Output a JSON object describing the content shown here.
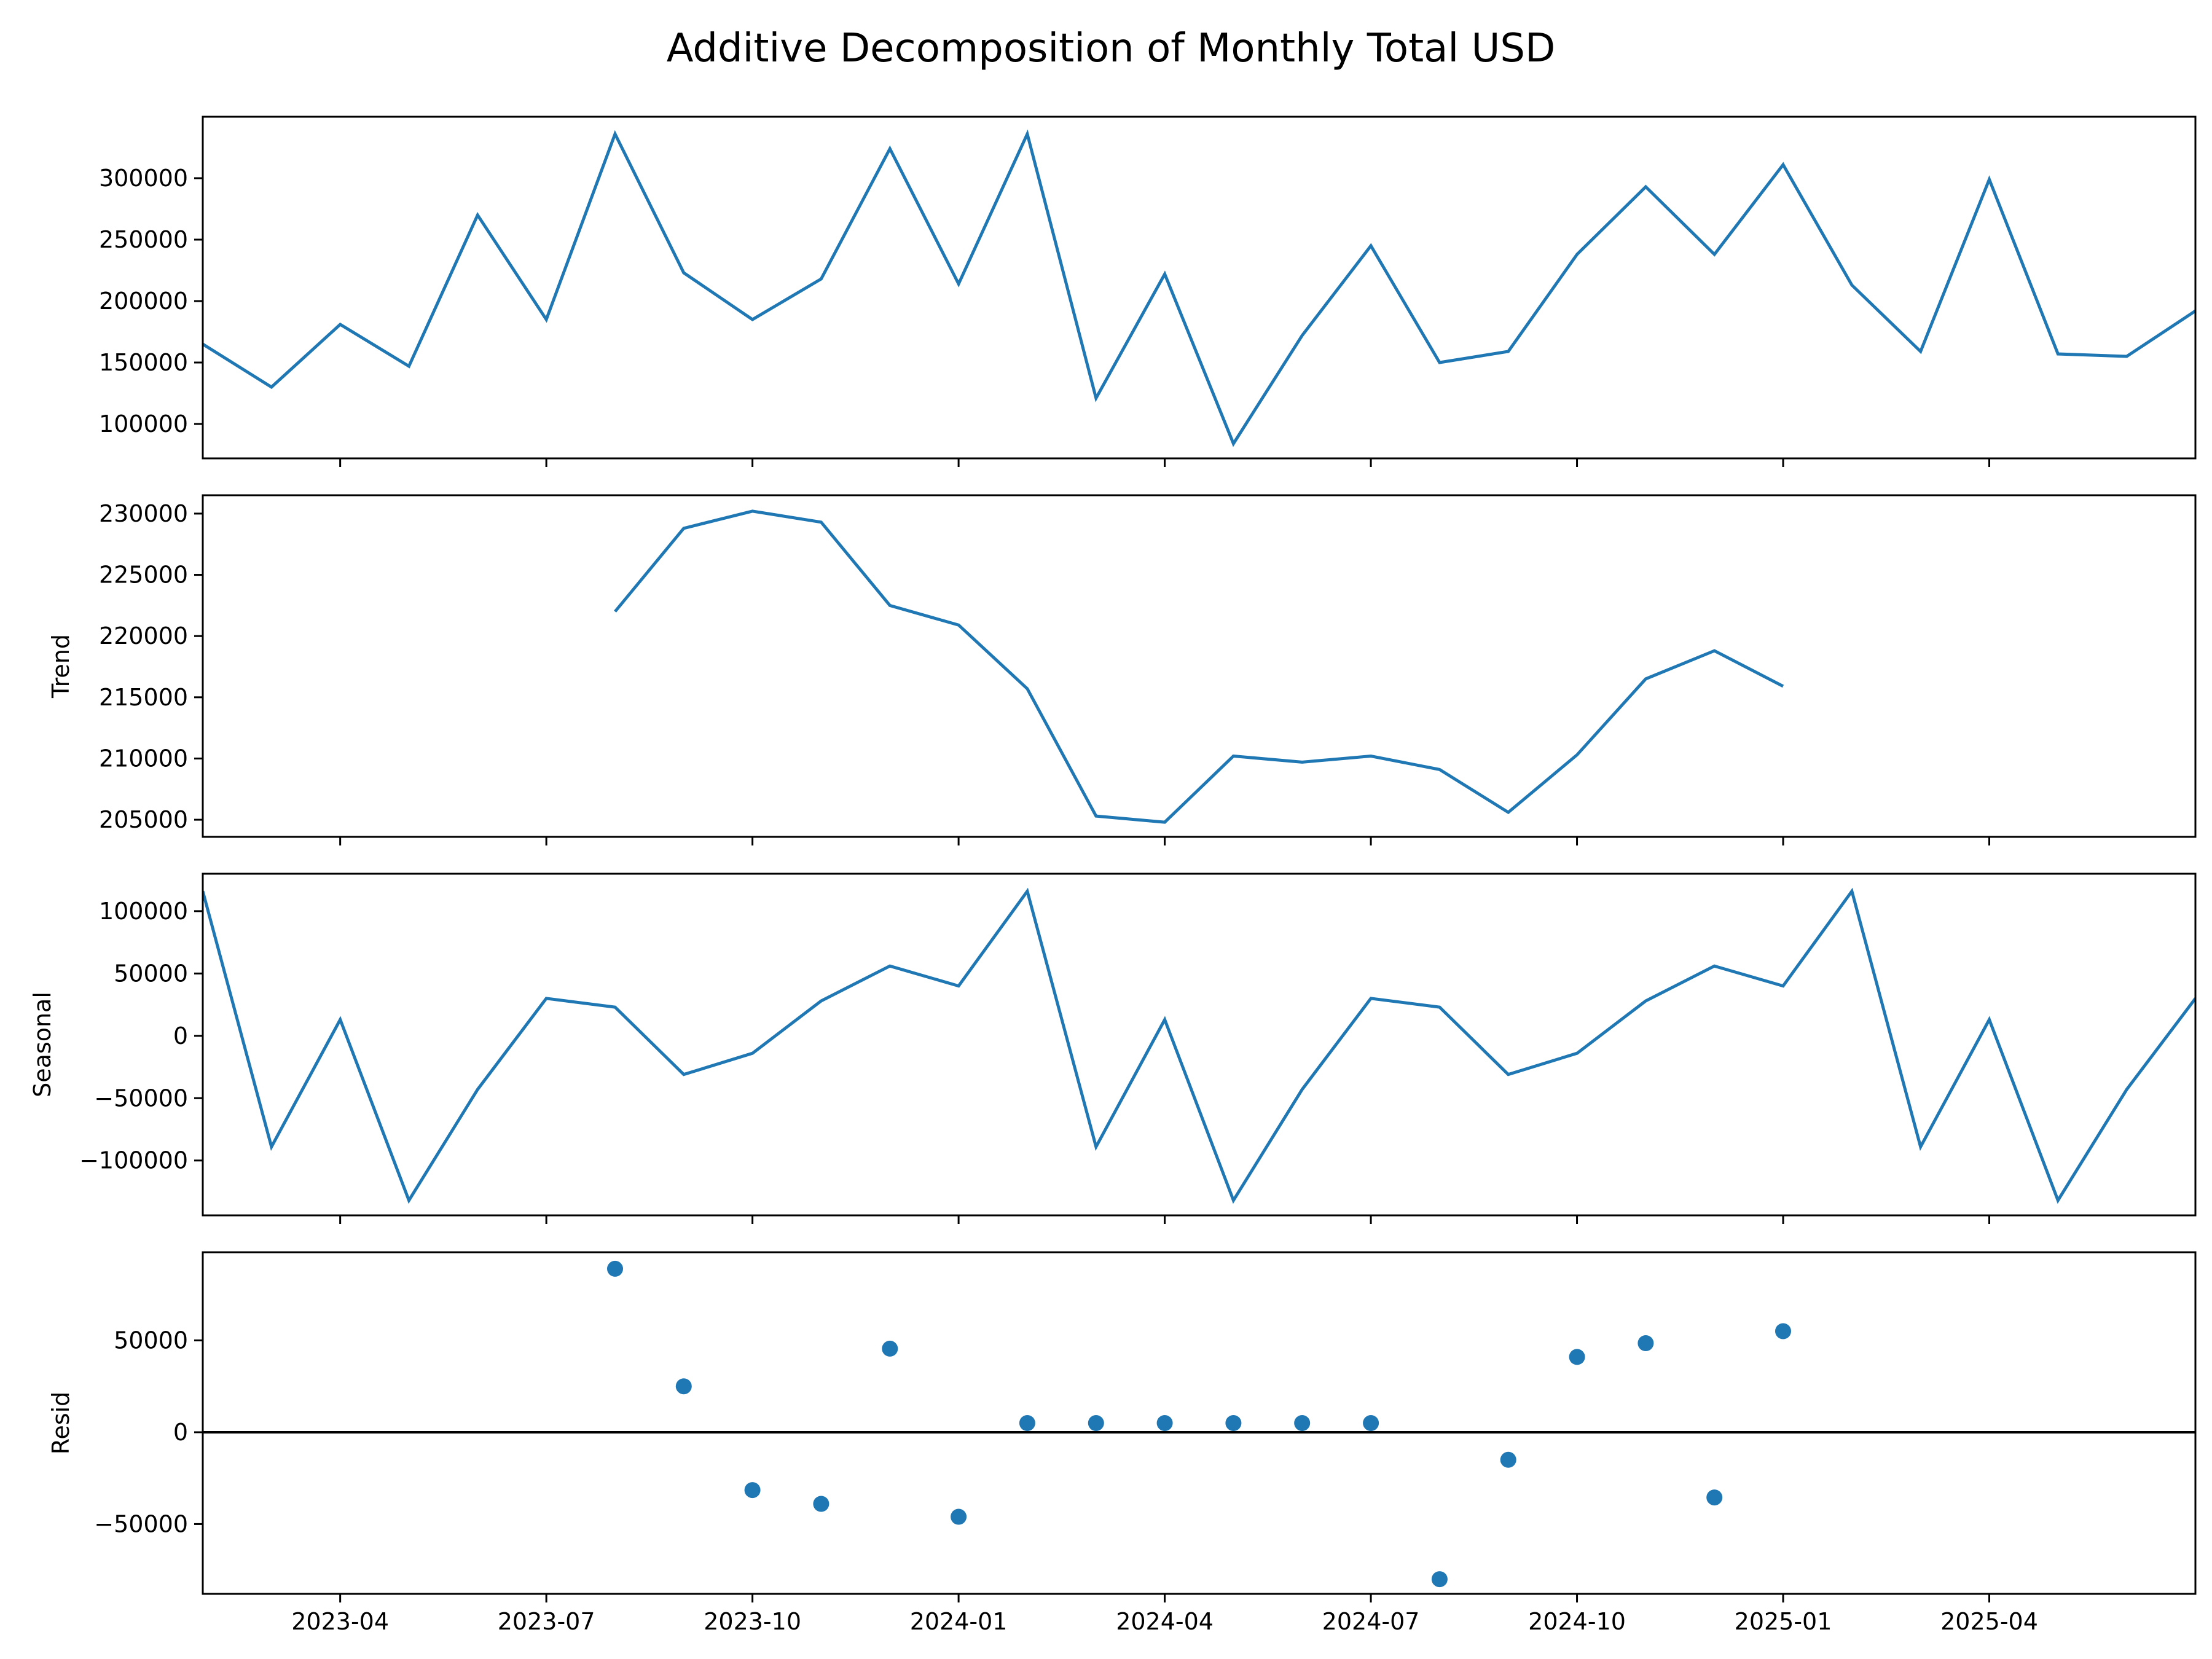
{
  "chart_data": {
    "type": "line",
    "title": "Additive Decomposition of Monthly Total USD",
    "x": [
      "2023-02",
      "2023-03",
      "2023-04",
      "2023-05",
      "2023-06",
      "2023-07",
      "2023-08",
      "2023-09",
      "2023-10",
      "2023-11",
      "2023-12",
      "2024-01",
      "2024-02",
      "2024-03",
      "2024-04",
      "2024-05",
      "2024-06",
      "2024-07",
      "2024-08",
      "2024-09",
      "2024-10",
      "2024-11",
      "2024-12",
      "2025-01",
      "2025-02",
      "2025-03",
      "2025-04",
      "2025-05",
      "2025-06",
      "2025-07"
    ],
    "x_tick_labels": [
      "2023-04",
      "2023-07",
      "2023-10",
      "2024-01",
      "2024-04",
      "2024-07",
      "2024-10",
      "2025-01",
      "2025-04"
    ],
    "color": "#1f77b4",
    "panels": [
      {
        "ylabel": "",
        "kind": "line",
        "ylim": [
          72000,
          350000
        ],
        "yticks": [
          100000,
          150000,
          200000,
          250000,
          300000
        ],
        "ytick_labels": [
          "100000",
          "150000",
          "200000",
          "250000",
          "300000"
        ],
        "values": [
          165000,
          130000,
          181000,
          147000,
          270000,
          185000,
          336000,
          223000,
          185000,
          218000,
          324000,
          214000,
          336000,
          121000,
          222000,
          84000,
          172000,
          245000,
          150000,
          159000,
          238000,
          293000,
          238000,
          311000,
          213000,
          159000,
          299000,
          157000,
          155000,
          192000
        ]
      },
      {
        "ylabel": "Trend",
        "kind": "line",
        "ylim": [
          203600,
          231500
        ],
        "yticks": [
          205000,
          210000,
          215000,
          220000,
          225000,
          230000
        ],
        "ytick_labels": [
          "205000",
          "210000",
          "215000",
          "220000",
          "225000",
          "230000"
        ],
        "values": [
          null,
          null,
          null,
          null,
          null,
          null,
          222000,
          228800,
          230200,
          229300,
          222500,
          220900,
          215700,
          205300,
          204800,
          210200,
          209700,
          210200,
          209100,
          205600,
          210300,
          216500,
          218800,
          215900,
          null,
          null,
          null,
          null,
          null,
          null
        ]
      },
      {
        "ylabel": "Seasonal",
        "kind": "line",
        "ylim": [
          -144000,
          130000
        ],
        "yticks": [
          -100000,
          -50000,
          0,
          50000,
          100000
        ],
        "ytick_labels": [
          "−100000",
          "−50000",
          "0",
          "50000",
          "100000"
        ],
        "values": [
          116000,
          -89000,
          13000,
          -132000,
          -43000,
          30000,
          23000,
          -31000,
          -14000,
          28000,
          56000,
          40000,
          116000,
          -89000,
          13000,
          -132000,
          -43000,
          30000,
          23000,
          -31000,
          -14000,
          28000,
          56000,
          40000,
          116000,
          -89000,
          13000,
          -132000,
          -43000,
          30000
        ]
      },
      {
        "ylabel": "Resid",
        "kind": "scatter",
        "zero_line": true,
        "ylim": [
          -88000,
          98000
        ],
        "yticks": [
          -50000,
          0,
          50000
        ],
        "ytick_labels": [
          "−50000",
          "0",
          "50000"
        ],
        "values": [
          null,
          null,
          null,
          null,
          null,
          null,
          89000,
          25000,
          -31500,
          -39000,
          45500,
          -46000,
          5000,
          5000,
          5000,
          5000,
          5000,
          5000,
          -80000,
          -15000,
          41000,
          48500,
          -35500,
          55000,
          null,
          null,
          null,
          null,
          null,
          null
        ]
      }
    ]
  }
}
